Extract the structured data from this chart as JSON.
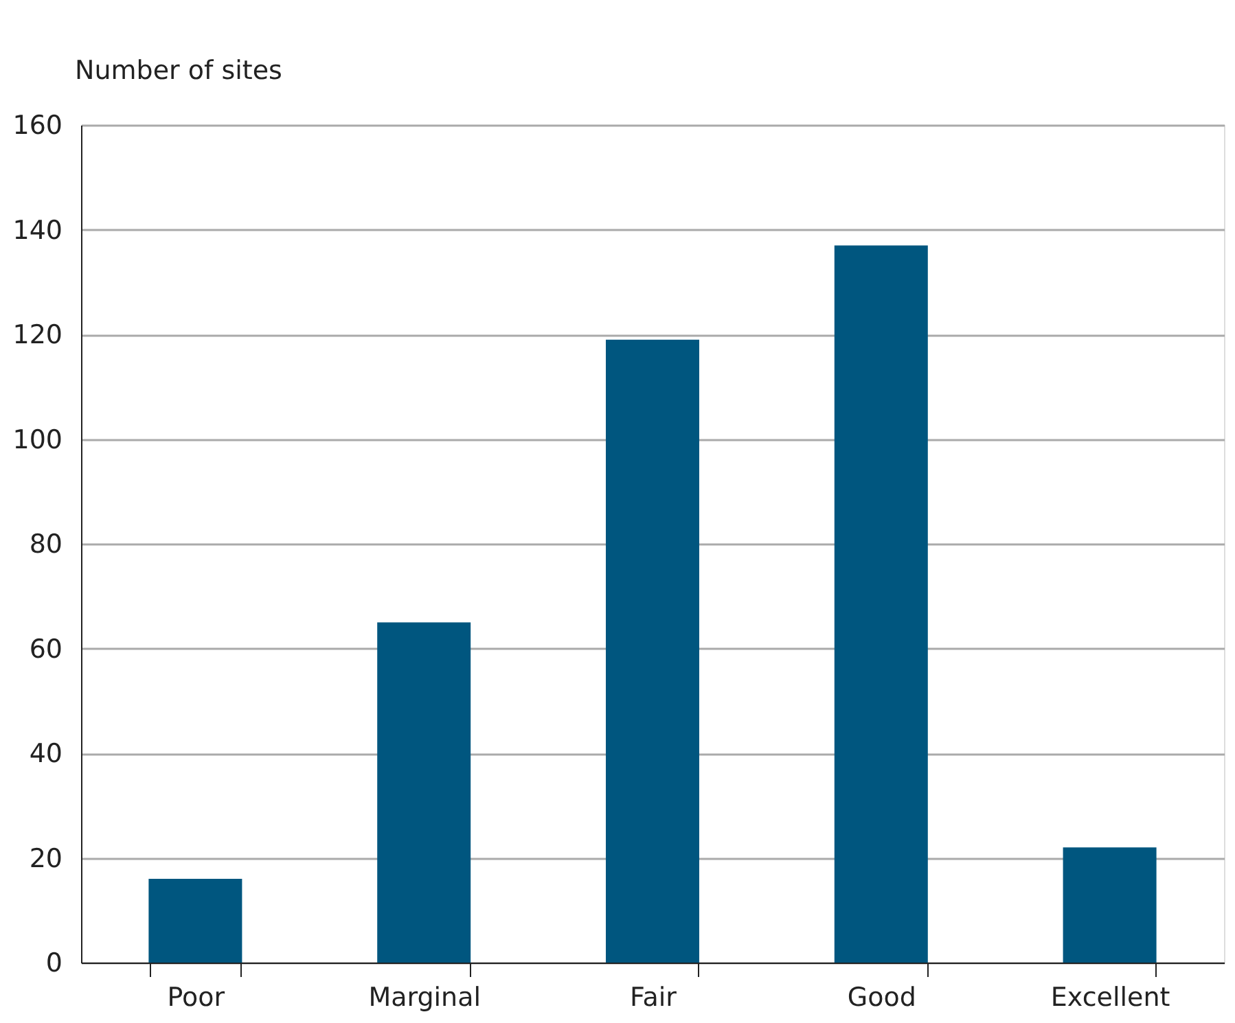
{
  "chart_data": {
    "type": "bar",
    "ylabel": "Number of sites",
    "categories": [
      "Poor",
      "Marginal",
      "Fair",
      "Good",
      "Excellent"
    ],
    "values": [
      16,
      65,
      119,
      137,
      22
    ],
    "color": "#00567f",
    "ylim": [
      0,
      160
    ],
    "yticks": [
      0,
      20,
      40,
      60,
      80,
      100,
      120,
      140,
      160
    ],
    "grid": "y"
  }
}
